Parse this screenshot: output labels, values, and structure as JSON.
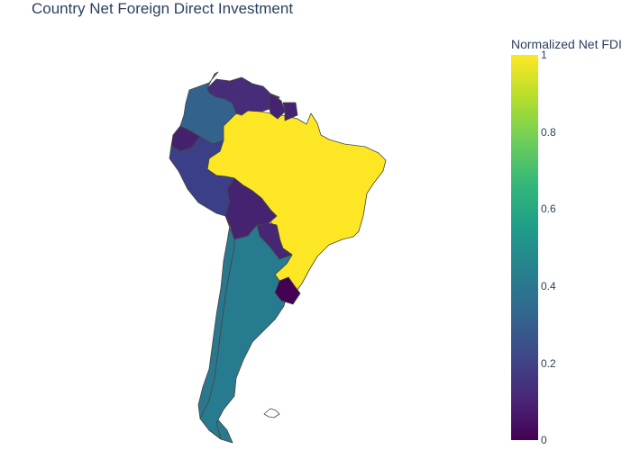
{
  "title": "Country Net Foreign Direct Investment",
  "colorbar": {
    "title": "Normalized Net FDI",
    "ticks": [
      "1",
      "0.8",
      "0.6",
      "0.4",
      "0.2",
      "0"
    ],
    "colorscale": [
      "#440154",
      "#482878",
      "#3e4989",
      "#31688e",
      "#26828e",
      "#1f9e89",
      "#35b779",
      "#6ece58",
      "#b5de2b",
      "#fde725"
    ]
  },
  "countries": [
    {
      "name": "Brazil",
      "value": 1.0,
      "color": "#fde725"
    },
    {
      "name": "Venezuela",
      "value": 0.12,
      "color": "#472c7a"
    },
    {
      "name": "Colombia",
      "value": 0.33,
      "color": "#33638d"
    },
    {
      "name": "Ecuador",
      "value": 0.08,
      "color": "#46216b"
    },
    {
      "name": "Peru",
      "value": 0.2,
      "color": "#3b3f87"
    },
    {
      "name": "Bolivia",
      "value": 0.1,
      "color": "#462371"
    },
    {
      "name": "Paraguay",
      "value": 0.11,
      "color": "#472773"
    },
    {
      "name": "Chile",
      "value": 0.41,
      "color": "#2a788e"
    },
    {
      "name": "Argentina",
      "value": 0.43,
      "color": "#277b8e"
    },
    {
      "name": "Uruguay",
      "value": 0.0,
      "color": "#440154"
    },
    {
      "name": "Guyana",
      "value": 0.1,
      "color": "#462371"
    },
    {
      "name": "Suriname",
      "value": 0.1,
      "color": "#462371"
    },
    {
      "name": "Falkland Islands",
      "value": null,
      "color": "#ffffff"
    }
  ]
}
